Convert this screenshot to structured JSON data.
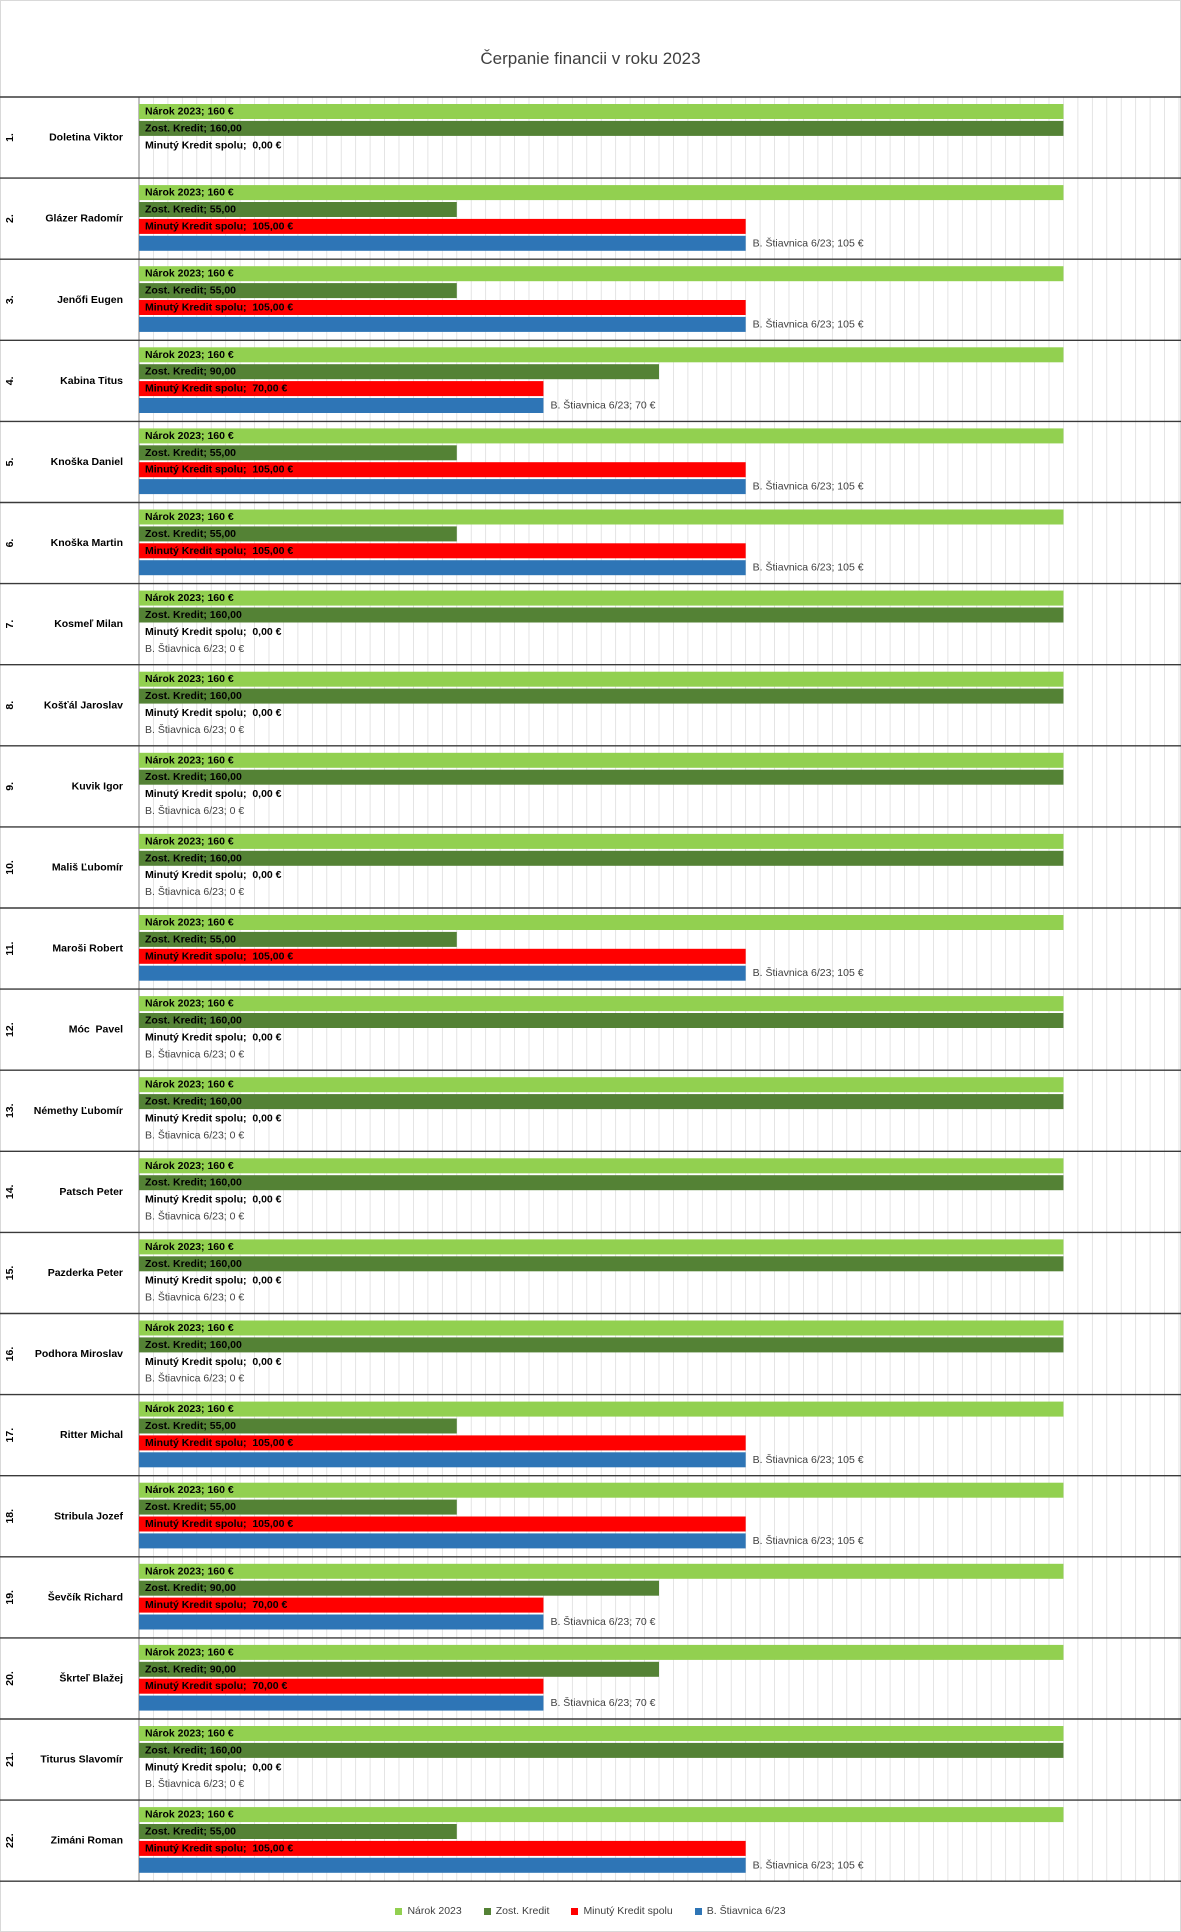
{
  "chart_data": {
    "type": "bar",
    "orientation": "horizontal",
    "title": "Čerpanie financii v roku 2023",
    "xlabel": "",
    "ylabel": "",
    "xlim": [
      0,
      180
    ],
    "grid": true,
    "legend": "bottom",
    "category_numbers": [
      "1.",
      "2.",
      "3.",
      "4.",
      "5.",
      "6.",
      "7.",
      "8.",
      "9.",
      "10.",
      "11.",
      "12.",
      "13.",
      "14.",
      "15.",
      "16.",
      "17.",
      "18.",
      "19.",
      "20.",
      "21.",
      "22."
    ],
    "categories": [
      "Doletina Viktor",
      "Glázer Radomír",
      "Jenőfi Eugen",
      "Kabina Titus",
      "Knoška Daniel",
      "Knoška Martin",
      "Kosmeľ Milan",
      "Košťál Jaroslav",
      "Kuvik Igor",
      "Mališ Ľubomír",
      "Maroši Robert",
      "Móc  Pavel",
      "Némethy Ľubomír",
      "Patsch Peter",
      "Pazderka Peter",
      "Podhora Miroslav",
      "Ritter Michal",
      "Stribula Jozef",
      "Ševčík Richard",
      "Škrteľ Blažej",
      "Titurus Slavomír",
      "Zimáni Roman"
    ],
    "series": [
      {
        "name": "Nárok 2023",
        "color": "#92D050",
        "values": [
          160,
          160,
          160,
          160,
          160,
          160,
          160,
          160,
          160,
          160,
          160,
          160,
          160,
          160,
          160,
          160,
          160,
          160,
          160,
          160,
          160,
          160
        ],
        "labels": [
          "Nárok 2023; 160 €",
          "Nárok 2023; 160 €",
          "Nárok 2023; 160 €",
          "Nárok 2023; 160 €",
          "Nárok 2023; 160 €",
          "Nárok 2023; 160 €",
          "Nárok 2023; 160 €",
          "Nárok 2023; 160 €",
          "Nárok 2023; 160 €",
          "Nárok 2023; 160 €",
          "Nárok 2023; 160 €",
          "Nárok 2023; 160 €",
          "Nárok 2023; 160 €",
          "Nárok 2023; 160 €",
          "Nárok 2023; 160 €",
          "Nárok 2023; 160 €",
          "Nárok 2023; 160 €",
          "Nárok 2023; 160 €",
          "Nárok 2023; 160 €",
          "Nárok 2023; 160 €",
          "Nárok 2023; 160 €",
          "Nárok 2023; 160 €"
        ]
      },
      {
        "name": "Zost. Kredit",
        "color": "#548235",
        "values": [
          160,
          55,
          55,
          90,
          55,
          55,
          160,
          160,
          160,
          160,
          55,
          160,
          160,
          160,
          160,
          160,
          55,
          55,
          90,
          90,
          160,
          55
        ],
        "labels": [
          "Zost. Kredit; 160,00",
          "Zost. Kredit; 55,00",
          "Zost. Kredit; 55,00",
          "Zost. Kredit; 90,00",
          "Zost. Kredit; 55,00",
          "Zost. Kredit; 55,00",
          "Zost. Kredit; 160,00",
          "Zost. Kredit; 160,00",
          "Zost. Kredit; 160,00",
          "Zost. Kredit; 160,00",
          "Zost. Kredit; 55,00",
          "Zost. Kredit; 160,00",
          "Zost. Kredit; 160,00",
          "Zost. Kredit; 160,00",
          "Zost. Kredit; 160,00",
          "Zost. Kredit; 160,00",
          "Zost. Kredit; 55,00",
          "Zost. Kredit; 55,00",
          "Zost. Kredit; 90,00",
          "Zost. Kredit; 90,00",
          "Zost. Kredit; 160,00",
          "Zost. Kredit; 55,00"
        ]
      },
      {
        "name": "Minutý Kredit spolu",
        "color": "#FF0000",
        "values": [
          0,
          105,
          105,
          70,
          105,
          105,
          0,
          0,
          0,
          0,
          105,
          0,
          0,
          0,
          0,
          0,
          105,
          105,
          70,
          70,
          0,
          105
        ],
        "labels": [
          "Minutý Kredit spolu;  0,00 €",
          "Minutý Kredit spolu;  105,00 €",
          "Minutý Kredit spolu;  105,00 €",
          "Minutý Kredit spolu;  70,00 €",
          "Minutý Kredit spolu;  105,00 €",
          "Minutý Kredit spolu;  105,00 €",
          "Minutý Kredit spolu;  0,00 €",
          "Minutý Kredit spolu;  0,00 €",
          "Minutý Kredit spolu;  0,00 €",
          "Minutý Kredit spolu;  0,00 €",
          "Minutý Kredit spolu;  105,00 €",
          "Minutý Kredit spolu;  0,00 €",
          "Minutý Kredit spolu;  0,00 €",
          "Minutý Kredit spolu;  0,00 €",
          "Minutý Kredit spolu;  0,00 €",
          "Minutý Kredit spolu;  0,00 €",
          "Minutý Kredit spolu;  105,00 €",
          "Minutý Kredit spolu;  105,00 €",
          "Minutý Kredit spolu;  70,00 €",
          "Minutý Kredit spolu;  70,00 €",
          "Minutý Kredit spolu;  0,00 €",
          "Minutý Kredit spolu;  105,00 €"
        ]
      },
      {
        "name": "B. Štiavnica 6/23",
        "color": "#2E75B6",
        "values": [
          null,
          105,
          105,
          70,
          105,
          105,
          0,
          0,
          0,
          0,
          105,
          0,
          0,
          0,
          0,
          0,
          105,
          105,
          70,
          70,
          0,
          105
        ],
        "labels": [
          null,
          "B. Štiavnica 6/23; 105 €",
          "B. Štiavnica 6/23; 105 €",
          "B. Štiavnica 6/23; 70 €",
          "B. Štiavnica 6/23; 105 €",
          "B. Štiavnica 6/23; 105 €",
          "B. Štiavnica 6/23; 0 €",
          "B. Štiavnica 6/23; 0 €",
          "B. Štiavnica 6/23; 0 €",
          "B. Štiavnica 6/23; 0 €",
          "B. Štiavnica 6/23; 105 €",
          "B. Štiavnica 6/23; 0 €",
          "B. Štiavnica 6/23; 0 €",
          "B. Štiavnica 6/23; 0 €",
          "B. Štiavnica 6/23; 0 €",
          "B. Štiavnica 6/23; 0 €",
          "B. Štiavnica 6/23; 105 €",
          "B. Štiavnica 6/23; 105 €",
          "B. Štiavnica 6/23; 70 €",
          "B. Štiavnica 6/23; 70 €",
          "B. Štiavnica 6/23; 0 €",
          "B. Štiavnica 6/23; 105 €"
        ]
      }
    ]
  }
}
